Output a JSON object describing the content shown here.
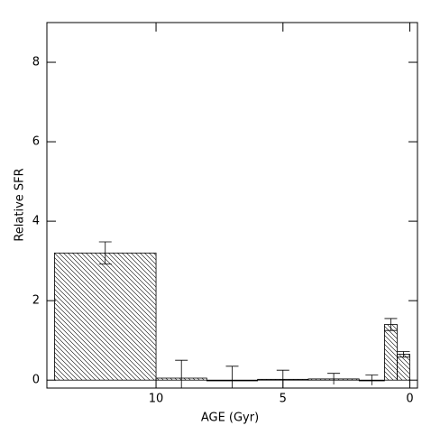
{
  "chart_data": {
    "type": "histogram",
    "xlabel": "AGE (Gyr)",
    "ylabel": "Relative SFR",
    "bins": [
      14,
      10,
      8,
      6,
      4,
      2,
      1,
      0.5,
      0
    ],
    "values": [
      3.2,
      0.05,
      0.0,
      0.02,
      0.03,
      0.0,
      1.4,
      0.65
    ],
    "errors": [
      0.28,
      0.45,
      0.35,
      0.23,
      0.14,
      0.13,
      0.15,
      0.07
    ],
    "color": "#000000",
    "xlim": [
      14.3,
      -0.3
    ],
    "xticks": [
      10,
      5,
      0
    ],
    "ylim": [
      -0.2,
      9
    ],
    "yticks": [
      0,
      2,
      4,
      6,
      8
    ]
  }
}
